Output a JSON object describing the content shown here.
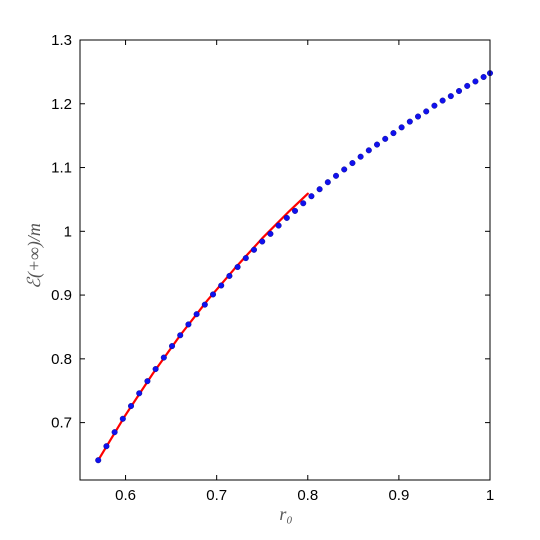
{
  "chart_data": {
    "type": "scatter",
    "xlabel": "r₀",
    "ylabel": "ℰ(+∞)/m",
    "xlim": [
      0.55,
      1.0
    ],
    "ylim": [
      0.61,
      1.3
    ],
    "grid": false,
    "xticks": [
      0.6,
      0.7,
      0.8,
      0.9,
      1.0
    ],
    "xtick_labels": [
      "0.6",
      "0.7",
      "0.8",
      "0.9",
      "1"
    ],
    "yticks": [
      0.7,
      0.8,
      0.9,
      1.0,
      1.1,
      1.2,
      1.3
    ],
    "ytick_labels": [
      "0.7",
      "0.8",
      "0.9",
      "1",
      "1.1",
      "1.2",
      "1.3"
    ],
    "series": [
      {
        "kind": "line",
        "color": "#ff0000",
        "x": [
          0.57,
          0.6,
          0.63,
          0.66,
          0.69,
          0.72,
          0.75,
          0.78,
          0.8
        ],
        "y": [
          0.641,
          0.712,
          0.777,
          0.837,
          0.892,
          0.942,
          0.989,
          1.032,
          1.059
        ]
      },
      {
        "kind": "markers",
        "color": "#1010ee",
        "x": [
          0.57,
          0.579,
          0.588,
          0.597,
          0.606,
          0.615,
          0.624,
          0.633,
          0.642,
          0.651,
          0.66,
          0.669,
          0.678,
          0.687,
          0.696,
          0.705,
          0.714,
          0.723,
          0.732,
          0.741,
          0.75,
          0.759,
          0.768,
          0.777,
          0.786,
          0.795,
          0.804,
          0.813,
          0.822,
          0.831,
          0.84,
          0.849,
          0.858,
          0.867,
          0.876,
          0.885,
          0.894,
          0.903,
          0.912,
          0.921,
          0.93,
          0.939,
          0.948,
          0.957,
          0.966,
          0.975,
          0.984,
          0.993,
          1.0
        ],
        "y": [
          0.641,
          0.663,
          0.685,
          0.706,
          0.726,
          0.746,
          0.765,
          0.784,
          0.802,
          0.82,
          0.837,
          0.854,
          0.87,
          0.885,
          0.901,
          0.915,
          0.93,
          0.944,
          0.958,
          0.971,
          0.984,
          0.996,
          1.009,
          1.021,
          1.032,
          1.044,
          1.055,
          1.066,
          1.077,
          1.087,
          1.097,
          1.107,
          1.117,
          1.127,
          1.136,
          1.145,
          1.154,
          1.163,
          1.172,
          1.18,
          1.188,
          1.197,
          1.205,
          1.212,
          1.22,
          1.228,
          1.235,
          1.242,
          1.248
        ]
      }
    ]
  }
}
